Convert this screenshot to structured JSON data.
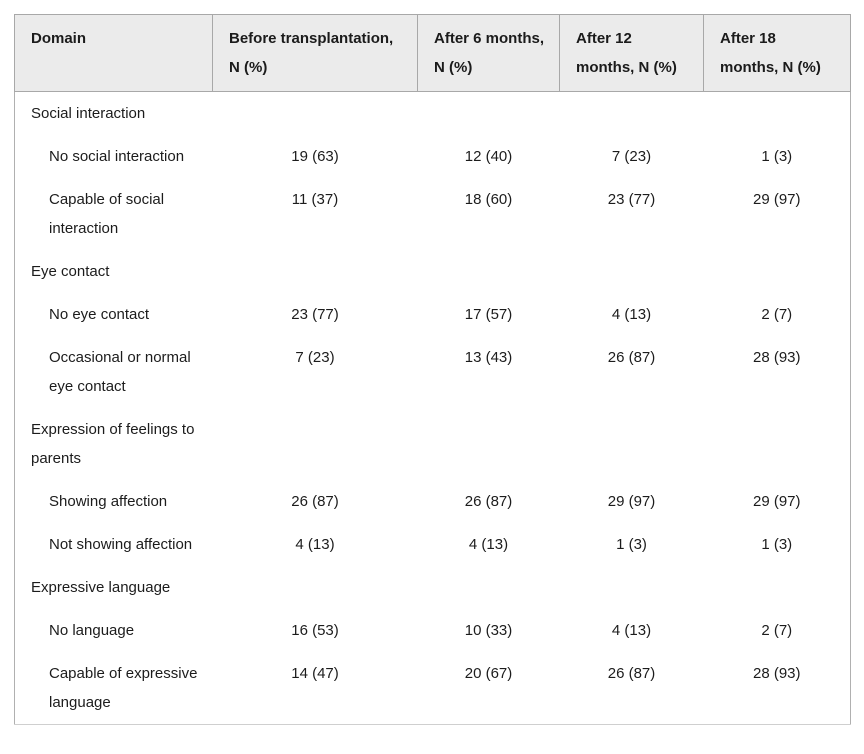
{
  "table": {
    "columns": [
      "Domain",
      "Before transplantation, N (%)",
      "After 6 months, N (%)",
      "After 12 months, N (%)",
      "After 18 months, N (%)"
    ],
    "sections": [
      {
        "domain": "Social interaction",
        "rows": [
          {
            "label": "No social interaction",
            "values": [
              "19 (63)",
              "12 (40)",
              "7 (23)",
              "1 (3)"
            ]
          },
          {
            "label": "Capable of social interaction",
            "values": [
              "11 (37)",
              "18 (60)",
              "23 (77)",
              "29 (97)"
            ]
          }
        ]
      },
      {
        "domain": "Eye contact",
        "rows": [
          {
            "label": "No eye contact",
            "values": [
              "23 (77)",
              "17 (57)",
              "4 (13)",
              "2 (7)"
            ]
          },
          {
            "label": "Occasional or normal eye contact",
            "values": [
              "7 (23)",
              "13 (43)",
              "26 (87)",
              "28 (93)"
            ]
          }
        ]
      },
      {
        "domain": "Expression of feelings to parents",
        "rows": [
          {
            "label": "Showing affection",
            "values": [
              "26 (87)",
              "26 (87)",
              "29 (97)",
              "29 (97)"
            ]
          },
          {
            "label": "Not showing affection",
            "values": [
              "4 (13)",
              "4 (13)",
              "1 (3)",
              "1 (3)"
            ]
          }
        ]
      },
      {
        "domain": "Expressive language",
        "rows": [
          {
            "label": "No language",
            "values": [
              "16 (53)",
              "10 (33)",
              "4 (13)",
              "2 (7)"
            ]
          },
          {
            "label": "Capable of expressive language",
            "values": [
              "14 (47)",
              "20 (67)",
              "26 (87)",
              "28 (93)"
            ]
          }
        ]
      }
    ]
  },
  "colors": {
    "header_bg": "#ebebeb",
    "border": "#a8a8a8",
    "text": "#1c1c1c"
  }
}
